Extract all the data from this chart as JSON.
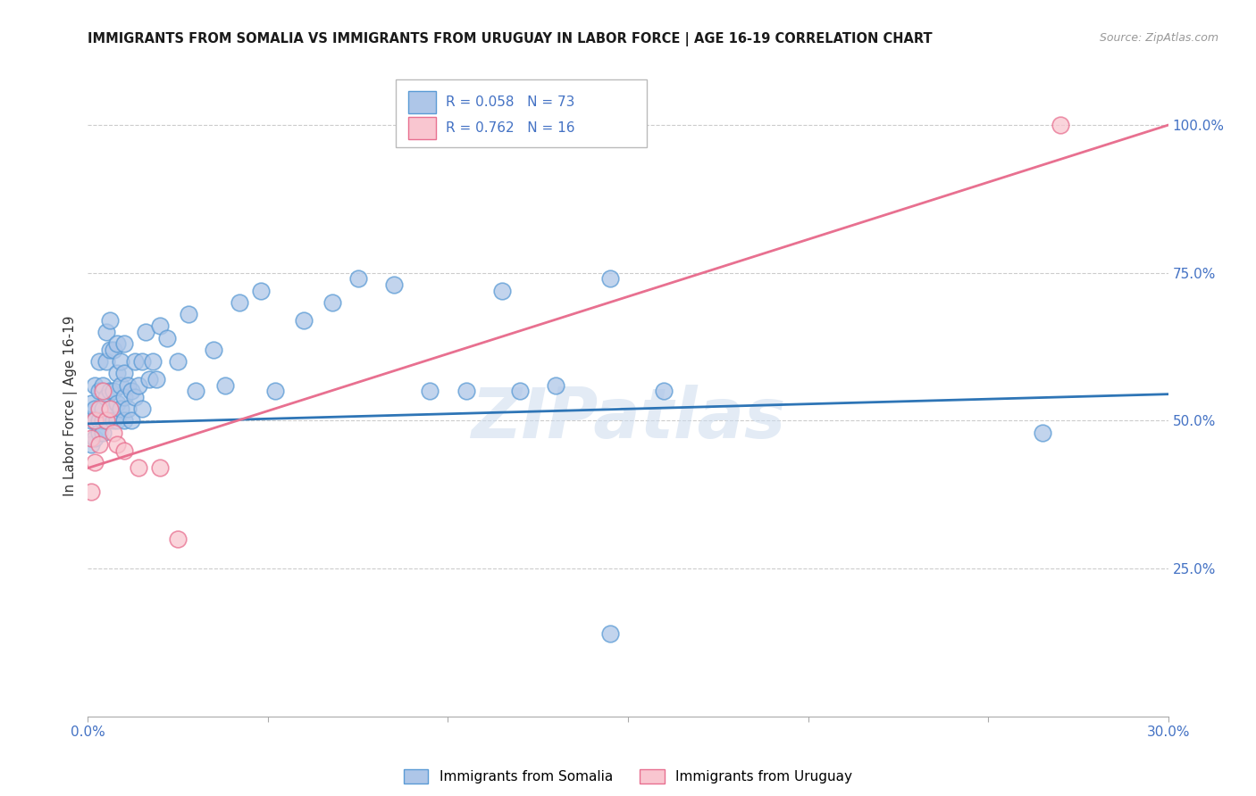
{
  "title": "IMMIGRANTS FROM SOMALIA VS IMMIGRANTS FROM URUGUAY IN LABOR FORCE | AGE 16-19 CORRELATION CHART",
  "source": "Source: ZipAtlas.com",
  "ylabel": "In Labor Force | Age 16-19",
  "x_min": 0.0,
  "x_max": 0.3,
  "y_min": 0.0,
  "y_max": 1.05,
  "x_ticks": [
    0.0,
    0.05,
    0.1,
    0.15,
    0.2,
    0.25,
    0.3
  ],
  "y_ticks_right": [
    0.25,
    0.5,
    0.75,
    1.0
  ],
  "y_tick_labels_right": [
    "25.0%",
    "50.0%",
    "75.0%",
    "100.0%"
  ],
  "somalia_color": "#aec6e8",
  "somalia_edge_color": "#5b9bd5",
  "uruguay_color": "#f9c6d0",
  "uruguay_edge_color": "#e87090",
  "somalia_line_color": "#2e75b6",
  "uruguay_line_color": "#e87090",
  "legend_somalia_R": "0.058",
  "legend_somalia_N": "73",
  "legend_uruguay_R": "0.762",
  "legend_uruguay_N": "16",
  "watermark": "ZIPatlas",
  "watermark_color": "#ccdcee",
  "somalia_points_x": [
    0.001,
    0.001,
    0.001,
    0.002,
    0.002,
    0.002,
    0.002,
    0.003,
    0.003,
    0.003,
    0.003,
    0.004,
    0.004,
    0.004,
    0.004,
    0.005,
    0.005,
    0.005,
    0.005,
    0.006,
    0.006,
    0.006,
    0.006,
    0.007,
    0.007,
    0.007,
    0.008,
    0.008,
    0.008,
    0.008,
    0.009,
    0.009,
    0.009,
    0.01,
    0.01,
    0.01,
    0.01,
    0.011,
    0.011,
    0.012,
    0.012,
    0.013,
    0.013,
    0.014,
    0.015,
    0.015,
    0.016,
    0.017,
    0.018,
    0.019,
    0.02,
    0.022,
    0.025,
    0.028,
    0.03,
    0.035,
    0.038,
    0.042,
    0.048,
    0.052,
    0.06,
    0.068,
    0.075,
    0.085,
    0.095,
    0.105,
    0.115,
    0.13,
    0.145,
    0.16,
    0.12,
    0.145,
    0.265
  ],
  "somalia_points_y": [
    0.5,
    0.46,
    0.53,
    0.52,
    0.47,
    0.56,
    0.5,
    0.5,
    0.48,
    0.55,
    0.6,
    0.52,
    0.5,
    0.56,
    0.48,
    0.54,
    0.5,
    0.6,
    0.65,
    0.52,
    0.55,
    0.62,
    0.67,
    0.5,
    0.55,
    0.62,
    0.5,
    0.53,
    0.58,
    0.63,
    0.52,
    0.56,
    0.6,
    0.5,
    0.54,
    0.58,
    0.63,
    0.52,
    0.56,
    0.5,
    0.55,
    0.54,
    0.6,
    0.56,
    0.52,
    0.6,
    0.65,
    0.57,
    0.6,
    0.57,
    0.66,
    0.64,
    0.6,
    0.68,
    0.55,
    0.62,
    0.56,
    0.7,
    0.72,
    0.55,
    0.67,
    0.7,
    0.74,
    0.73,
    0.55,
    0.55,
    0.72,
    0.56,
    0.74,
    0.55,
    0.55,
    0.14,
    0.48
  ],
  "uruguay_points_x": [
    0.001,
    0.001,
    0.002,
    0.002,
    0.003,
    0.003,
    0.004,
    0.005,
    0.006,
    0.007,
    0.008,
    0.01,
    0.014,
    0.02,
    0.025,
    0.27
  ],
  "uruguay_points_y": [
    0.47,
    0.38,
    0.5,
    0.43,
    0.52,
    0.46,
    0.55,
    0.5,
    0.52,
    0.48,
    0.46,
    0.45,
    0.42,
    0.42,
    0.3,
    1.0
  ],
  "somalia_trend_x": [
    0.0,
    0.3
  ],
  "somalia_trend_y": [
    0.495,
    0.545
  ],
  "uruguay_trend_x": [
    0.0,
    0.3
  ],
  "uruguay_trend_y": [
    0.42,
    1.0
  ],
  "grid_color": "#cccccc",
  "axis_color": "#4472c4",
  "tick_color": "#4472c4",
  "background_color": "#ffffff"
}
